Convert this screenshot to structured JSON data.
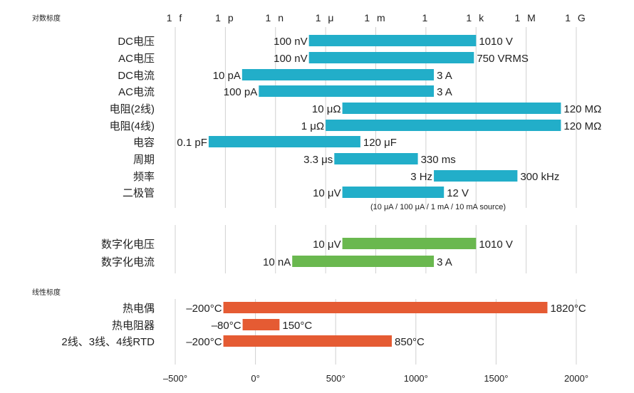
{
  "chart_data": {
    "type": "range-bar",
    "log_axis": {
      "section_label": "对数标度",
      "ticks": [
        {
          "label": "1 f",
          "value": 1e-15
        },
        {
          "label": "1 p",
          "value": 1e-12
        },
        {
          "label": "1 n",
          "value": 1e-09
        },
        {
          "label": "1 μ",
          "value": 1e-06
        },
        {
          "label": "1 m",
          "value": 0.001
        },
        {
          "label": "1",
          "value": 1
        },
        {
          "label": "1 k",
          "value": 1000.0
        },
        {
          "label": "1 M",
          "value": 1000000.0
        },
        {
          "label": "1 G",
          "value": 1000000000.0
        }
      ]
    },
    "log_rows": [
      {
        "name": "DC电压",
        "min": 1e-07,
        "max": 1010,
        "min_label": "100 nV",
        "max_label": "1010 V",
        "color": "#22aec9"
      },
      {
        "name": "AC电压",
        "min": 1e-07,
        "max": 750,
        "min_label": "100 nV",
        "max_label": "750 VRMS",
        "color": "#22aec9"
      },
      {
        "name": "DC电流",
        "min": 1e-11,
        "max": 3,
        "min_label": "10 pA",
        "max_label": "3 A",
        "color": "#22aec9"
      },
      {
        "name": "AC电流",
        "min": 1e-10,
        "max": 3,
        "min_label": "100 pA",
        "max_label": "3 A",
        "color": "#22aec9"
      },
      {
        "name": "电阻(2线)",
        "min": 1e-05,
        "max": 120000000.0,
        "min_label": "10 μΩ",
        "max_label": "120 MΩ",
        "color": "#22aec9"
      },
      {
        "name": "电阻(4线)",
        "min": 1e-06,
        "max": 120000000.0,
        "min_label": "1 μΩ",
        "max_label": "120 MΩ",
        "color": "#22aec9"
      },
      {
        "name": "电容",
        "min": 1e-13,
        "max": 0.00012,
        "min_label": "0.1 pF",
        "max_label": "120 μF",
        "color": "#22aec9"
      },
      {
        "name": "周期",
        "min": 3.3e-06,
        "max": 0.33,
        "min_label": "3.3 μs",
        "max_label": "330 ms",
        "color": "#22aec9"
      },
      {
        "name": "频率",
        "min": 3,
        "max": 300000.0,
        "min_label": "3 Hz",
        "max_label": "300 kHz",
        "color": "#22aec9"
      },
      {
        "name": "二极管",
        "min": 1e-05,
        "max": 12,
        "min_label": "10 μV",
        "max_label": "12 V",
        "color": "#22aec9"
      }
    ],
    "log_note": "(10 μA / 100 μA / 1 mA / 10 mA source)",
    "digitize_rows": [
      {
        "name": "数字化电压",
        "min": 1e-05,
        "max": 1010,
        "min_label": "10 μV",
        "max_label": "1010 V",
        "color": "#6ab84f"
      },
      {
        "name": "数字化电流",
        "min": 1e-08,
        "max": 3,
        "min_label": "10 nA",
        "max_label": "3 A",
        "color": "#6ab84f"
      }
    ],
    "linear_axis": {
      "section_label": "线性标度",
      "range": [
        -500,
        2000
      ],
      "ticks": [
        {
          "label": "–500°",
          "value": -500
        },
        {
          "label": "0°",
          "value": 0
        },
        {
          "label": "500°",
          "value": 500
        },
        {
          "label": "1000°",
          "value": 1000
        },
        {
          "label": "1500°",
          "value": 1500
        },
        {
          "label": "2000°",
          "value": 2000
        }
      ]
    },
    "linear_rows": [
      {
        "name": "热电偶",
        "min": -200,
        "max": 1820,
        "min_label": "–200°C",
        "max_label": "1820°C",
        "color": "#e55b33"
      },
      {
        "name": "热电阻器",
        "min": -80,
        "max": 150,
        "min_label": "–80°C",
        "max_label": "150°C",
        "color": "#e55b33"
      },
      {
        "name": "2线、3线、4线RTD",
        "min": -200,
        "max": 850,
        "min_label": "–200°C",
        "max_label": "850°C",
        "color": "#e55b33"
      }
    ]
  }
}
